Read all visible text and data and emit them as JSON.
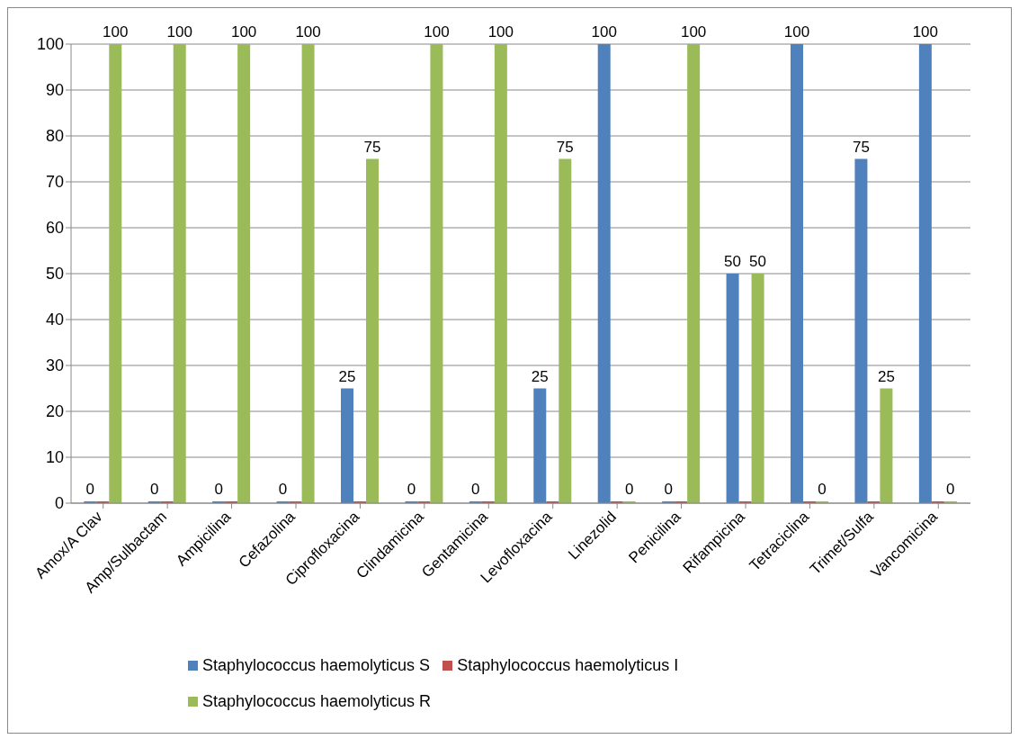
{
  "chart_data": {
    "type": "bar",
    "categories": [
      "Amox/A Clav",
      "Amp/Sulbactam",
      "Ampicilina",
      "Cefazolina",
      "Ciprofloxacina",
      "Clindamicina",
      "Gentamicina",
      "Levofloxacina",
      "Linezolid",
      "Penicilina",
      "Rifampicina",
      "Tetraciclina",
      "Trimet/Sulfa",
      "Vancomicina"
    ],
    "series": [
      {
        "name": "Staphylococcus haemolyticus S",
        "color": "#4f81bd",
        "values": [
          0,
          0,
          0,
          0,
          25,
          0,
          0,
          25,
          100,
          0,
          50,
          100,
          75,
          100
        ],
        "value_labels": [
          "0",
          "0",
          "0",
          "0",
          "25",
          "0",
          "0",
          "25",
          "100",
          "0",
          "50",
          "100",
          "75",
          "100"
        ]
      },
      {
        "name": "Staphylococcus haemolyticus I",
        "color": "#c0504d",
        "values": [
          0,
          0,
          0,
          0,
          0,
          0,
          0,
          0,
          0,
          0,
          0,
          0,
          0,
          0
        ]
      },
      {
        "name": "Staphylococcus haemolyticus R",
        "color": "#9bbb59",
        "values": [
          100,
          100,
          100,
          100,
          75,
          100,
          100,
          75,
          0,
          100,
          50,
          0,
          25,
          0
        ],
        "value_labels": [
          "100",
          "100",
          "100",
          "100",
          "75",
          "100",
          "100",
          "75",
          "0",
          "100",
          "50",
          "0",
          "25",
          "0"
        ]
      }
    ],
    "ylim": [
      0,
      100
    ],
    "yticks": [
      0,
      10,
      20,
      30,
      40,
      50,
      60,
      70,
      80,
      90,
      100
    ],
    "grid": "y",
    "legend": "bottom"
  }
}
